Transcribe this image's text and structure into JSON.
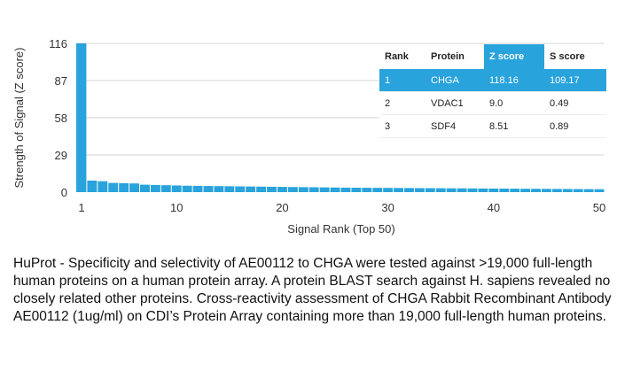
{
  "chart_data": {
    "type": "bar",
    "title": "",
    "xlabel": "Signal Rank (Top 50)",
    "ylabel": "Strength of Signal (Z score)",
    "ylim": [
      0,
      116
    ],
    "xlim": [
      1,
      50
    ],
    "yticks": [
      0,
      29,
      58,
      87,
      116
    ],
    "xticks": [
      1,
      10,
      20,
      30,
      40,
      50
    ],
    "grid": true,
    "color": "#29a3dc",
    "values": [
      118.16,
      9.0,
      8.51,
      7.2,
      7.0,
      6.8,
      5.8,
      5.6,
      5.4,
      5.2,
      5.0,
      4.9,
      4.8,
      4.7,
      4.6,
      4.5,
      4.4,
      4.3,
      4.2,
      4.1,
      4.0,
      3.9,
      3.8,
      3.7,
      3.6,
      3.5,
      3.45,
      3.4,
      3.35,
      3.3,
      3.25,
      3.2,
      3.15,
      3.1,
      3.05,
      3.0,
      2.95,
      2.9,
      2.85,
      2.8,
      2.75,
      2.7,
      2.65,
      2.6,
      2.55,
      2.5,
      2.45,
      2.4,
      2.35,
      2.3
    ]
  },
  "table": {
    "headers": [
      "Rank",
      "Protein",
      "Z score",
      "S score"
    ],
    "rows": [
      [
        "1",
        "CHGA",
        "118.16",
        "109.17"
      ],
      [
        "2",
        "VDAC1",
        "9.0",
        "0.49"
      ],
      [
        "3",
        "SDF4",
        "8.51",
        "0.89"
      ]
    ]
  },
  "caption": "HuProt  -  Specificity and selectivity of AE00112 to CHGA were tested against >19,000 full-length human proteins on a human protein array. A protein BLAST search against H. sapiens revealed no closely related other proteins. Cross-reactivity assessment of CHGA Rabbit Recombinant Antibody AE00112 (1ug/ml) on CDI’s Protein Array containing more than 19,000 full-length human proteins."
}
